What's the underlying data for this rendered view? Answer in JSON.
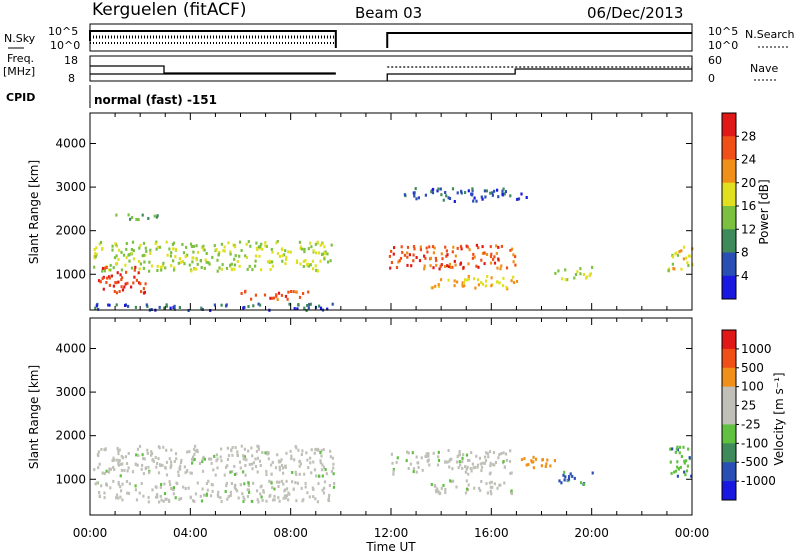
{
  "header": {
    "station": "Kerguelen (fitACF)",
    "beam": "Beam 03",
    "date": "06/Dec/2013"
  },
  "top_panels": {
    "nsky_label": "N.Sky",
    "nsky_ticks": [
      "10^5",
      "10^0"
    ],
    "nsearch_label": "N.Search",
    "nsearch_ticks": [
      "10^5",
      "10^0"
    ],
    "freq_label_1": "Freq.",
    "freq_label_2": "[MHz]",
    "freq_ticks": [
      "18",
      "8"
    ],
    "nave_label": "Nave",
    "nave_ticks": [
      "60",
      "0"
    ],
    "cpid_label": "CPID",
    "cpid_text": "normal (fast) -151"
  },
  "x_axis": {
    "label": "Time UT",
    "ticks": [
      "00:00",
      "04:00",
      "08:00",
      "12:00",
      "16:00",
      "20:00",
      "00:00"
    ],
    "range_hours": [
      0,
      24
    ]
  },
  "colors": {
    "power": [
      "#1818e0",
      "#2a4fb4",
      "#3e8a5a",
      "#7cc040",
      "#e0e020",
      "#f09018",
      "#f05018",
      "#e01818"
    ],
    "velocity": [
      "#1818e0",
      "#2a4fb4",
      "#3e8a5a",
      "#60c040",
      "#c0c0b8",
      "#c0c0b8",
      "#f09018",
      "#f05018",
      "#e01818"
    ]
  },
  "chart_data": [
    {
      "type": "heatmap",
      "name": "power",
      "ylabel": "Slant Range [km]",
      "ylim": [
        180,
        4700
      ],
      "yticks": [
        "1000",
        "2000",
        "3000",
        "4000"
      ],
      "colorbar_label": "Power [dB]",
      "colorbar_ticks": [
        "4",
        "8",
        "12",
        "16",
        "20",
        "24",
        "28"
      ],
      "data_gap_hours": [
        9.8,
        11.8
      ],
      "regions": [
        {
          "t": [
            0.1,
            9.7
          ],
          "r": [
            1100,
            1800
          ],
          "level": 16
        },
        {
          "t": [
            0.3,
            2.2
          ],
          "r": [
            600,
            1200
          ],
          "level": 28
        },
        {
          "t": [
            6.0,
            9.0
          ],
          "r": [
            450,
            650
          ],
          "level": 26
        },
        {
          "t": [
            0.0,
            9.7
          ],
          "r": [
            200,
            350
          ],
          "level": 6
        },
        {
          "t": [
            0.9,
            2.8
          ],
          "r": [
            2250,
            2400
          ],
          "level": 12
        },
        {
          "t": [
            11.9,
            17.0
          ],
          "r": [
            1150,
            1700
          ],
          "level": 26
        },
        {
          "t": [
            13.5,
            17.0
          ],
          "r": [
            700,
            1000
          ],
          "level": 20
        },
        {
          "t": [
            12.5,
            17.5
          ],
          "r": [
            2700,
            3000
          ],
          "level": 6
        },
        {
          "t": [
            18.5,
            20.0
          ],
          "r": [
            900,
            1200
          ],
          "level": 16
        },
        {
          "t": [
            23.0,
            24.0
          ],
          "r": [
            1100,
            1700
          ],
          "level": 18
        }
      ]
    },
    {
      "type": "heatmap",
      "name": "velocity",
      "ylabel": "Slant Range [km]",
      "ylim": [
        180,
        4700
      ],
      "yticks": [
        "1000",
        "2000",
        "3000",
        "4000"
      ],
      "colorbar_label": "Velocity [m s⁻¹]",
      "colorbar_ticks": [
        "1000",
        "500",
        "100",
        "25",
        "-25",
        "-100",
        "-500",
        "-1000"
      ],
      "data_gap_hours": [
        9.8,
        11.8
      ],
      "regions": [
        {
          "t": [
            0.1,
            9.7
          ],
          "r": [
            1100,
            1800
          ],
          "level": 0
        },
        {
          "t": [
            0.1,
            9.7
          ],
          "r": [
            500,
            1000
          ],
          "level": 0
        },
        {
          "t": [
            11.9,
            16.8
          ],
          "r": [
            1150,
            1700
          ],
          "level": 0
        },
        {
          "t": [
            13.5,
            17.0
          ],
          "r": [
            700,
            1000
          ],
          "level": 0
        },
        {
          "t": [
            17.0,
            18.5
          ],
          "r": [
            1300,
            1600
          ],
          "level": -300
        },
        {
          "t": [
            18.5,
            20.0
          ],
          "r": [
            900,
            1200
          ],
          "level": 120
        },
        {
          "t": [
            23.0,
            24.0
          ],
          "r": [
            1100,
            1900
          ],
          "level": 80
        }
      ]
    }
  ]
}
